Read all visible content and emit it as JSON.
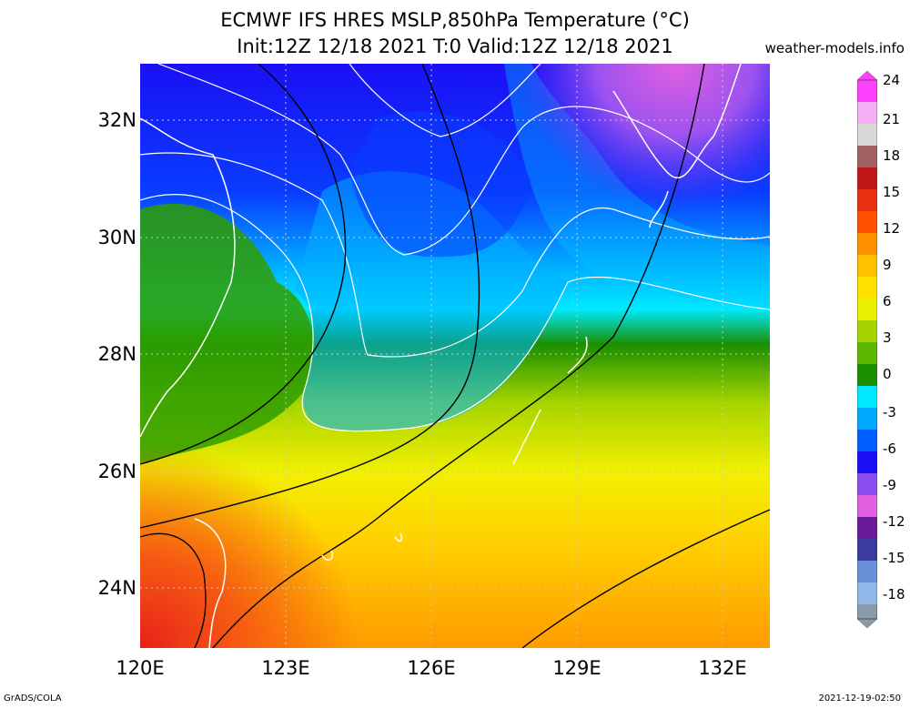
{
  "title_line1": "ECMWF IFS HRES MSLP,850hPa Temperature (°C)",
  "title_line2": "Init:12Z 12/18 2021 T:0 Valid:12Z 12/18 2021",
  "site": "weather-models.info",
  "footer_left": "GrADS/COLA",
  "footer_right": "2021-12-19-02:50",
  "lat_labels": [
    "32N",
    "30N",
    "28N",
    "26N",
    "24N"
  ],
  "lon_labels": [
    "120E",
    "123E",
    "126E",
    "129E",
    "132E"
  ],
  "colorbar_labels": [
    "24",
    "21",
    "18",
    "15",
    "12",
    "9",
    "6",
    "3",
    "0",
    "-3",
    "-6",
    "-9",
    "-12",
    "-15",
    "-18"
  ],
  "colors": {
    "warm": "#f33a16",
    "orange": "#ff9800",
    "yellow": "#f2f000",
    "lime": "#a6d400",
    "green": "#1a8f00",
    "cyan": "#00eaff",
    "sky": "#00a8ff",
    "blue": "#0a3cff",
    "deepblue": "#1a10f5",
    "violet": "#8a4cf0",
    "pink": "#e060e0"
  }
}
